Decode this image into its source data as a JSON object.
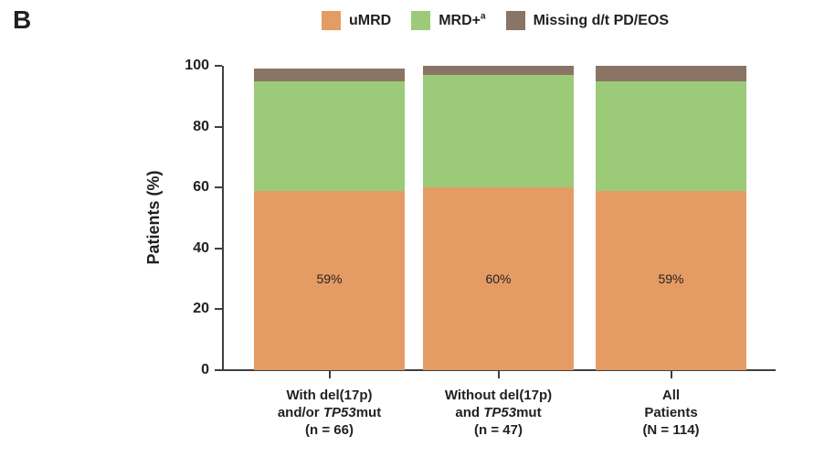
{
  "panel_label": "B",
  "colors": {
    "uMRD": "#E59C64",
    "MRD_positive": "#9BCB78",
    "missing": "#8A7466",
    "axis": "#3F3F41",
    "text": "#231F20",
    "background": "#FFFFFF"
  },
  "chart_data": {
    "type": "bar",
    "stacked": true,
    "title": "",
    "xlabel": "",
    "ylabel": "Patients (%)",
    "ylim": [
      0,
      100
    ],
    "yticks": [
      0,
      20,
      40,
      60,
      80,
      100
    ],
    "grid": false,
    "legend_position": "top-center",
    "categories": [
      "With del(17p) and/or TP53mut (n = 66)",
      "Without del(17p) and TP53mut (n = 47)",
      "All Patients (N = 114)"
    ],
    "category_lines": [
      {
        "lines": [
          [
            {
              "t": "With del(17p)"
            }
          ],
          [
            {
              "t": "and/or "
            },
            {
              "t": "TP53",
              "i": true
            },
            {
              "t": "mut"
            }
          ],
          [
            {
              "t": "(n = 66)"
            }
          ]
        ]
      },
      {
        "lines": [
          [
            {
              "t": "Without del(17p)"
            }
          ],
          [
            {
              "t": "and "
            },
            {
              "t": "TP53",
              "i": true
            },
            {
              "t": "mut"
            }
          ],
          [
            {
              "t": "(n = 47)"
            }
          ]
        ]
      },
      {
        "lines": [
          [
            {
              "t": "All"
            }
          ],
          [
            {
              "t": "Patients"
            }
          ],
          [
            {
              "t": "(N = 114)"
            }
          ]
        ]
      }
    ],
    "series": [
      {
        "name": "uMRD",
        "color": "#E59C64",
        "values": [
          59,
          60,
          59
        ]
      },
      {
        "name": "MRD+",
        "superscript": "a",
        "color": "#9BCB78",
        "values": [
          36,
          37,
          36
        ]
      },
      {
        "name": "Missing d/t PD/EOS",
        "color": "#8A7466",
        "values": [
          4,
          3,
          5
        ]
      }
    ],
    "bar_value_labels": [
      "59%",
      "60%",
      "59%"
    ]
  }
}
